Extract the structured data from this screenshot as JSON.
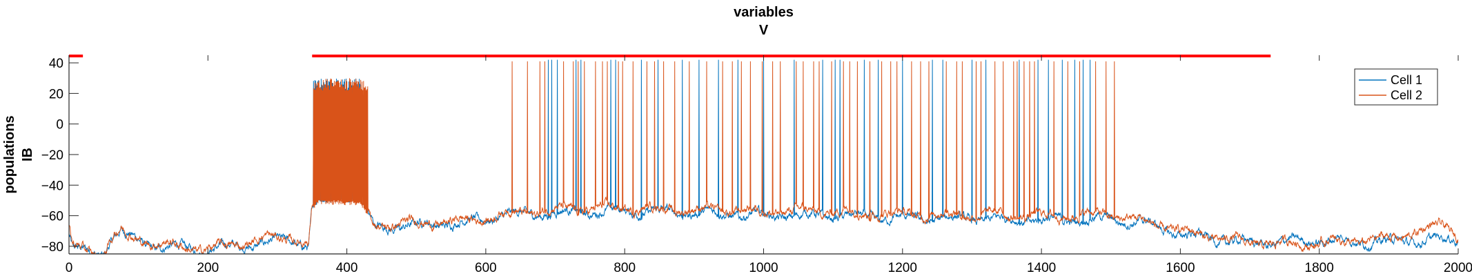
{
  "chart_data": {
    "type": "line",
    "title_lines": [
      "variables",
      "V"
    ],
    "ylabel_lines": [
      "populations",
      "IB"
    ],
    "xlabel": "",
    "xlim": [
      0,
      2000
    ],
    "ylim": [
      -85,
      45
    ],
    "xticks": [
      0,
      200,
      400,
      600,
      800,
      1000,
      1200,
      1400,
      1600,
      1800,
      2000
    ],
    "yticks": [
      -80,
      -60,
      -40,
      -20,
      0,
      20,
      40
    ],
    "legend_position": "top-right",
    "series": [
      {
        "name": "Cell 1",
        "color": "#0072BD",
        "baseline_points": [
          [
            0,
            -72
          ],
          [
            5,
            -82
          ],
          [
            50,
            -85
          ],
          [
            60,
            -76
          ],
          [
            75,
            -70
          ],
          [
            80,
            -72
          ],
          [
            120,
            -80
          ],
          [
            200,
            -82
          ],
          [
            280,
            -78
          ],
          [
            320,
            -76
          ],
          [
            345,
            -80
          ],
          [
            350,
            -55
          ],
          [
            360,
            -50
          ],
          [
            420,
            -50
          ],
          [
            440,
            -68
          ],
          [
            500,
            -66
          ],
          [
            580,
            -64
          ],
          [
            620,
            -60
          ],
          [
            700,
            -58
          ],
          [
            800,
            -57
          ],
          [
            900,
            -58
          ],
          [
            1000,
            -60
          ],
          [
            1100,
            -60
          ],
          [
            1200,
            -62
          ],
          [
            1300,
            -62
          ],
          [
            1400,
            -63
          ],
          [
            1500,
            -62
          ],
          [
            1550,
            -65
          ],
          [
            1600,
            -72
          ],
          [
            1700,
            -78
          ],
          [
            1800,
            -76
          ],
          [
            1900,
            -77
          ],
          [
            2000,
            -75
          ]
        ],
        "burst_range": [
          350,
          420
        ],
        "burst_peak": 30,
        "spike_times": [
          690,
          695,
          703,
          730,
          737,
          780,
          787,
          824,
          848,
          883,
          907,
          935,
          963,
          1000,
          1044,
          1085,
          1103,
          1110,
          1145,
          1165,
          1200,
          1243,
          1258,
          1300,
          1320,
          1368,
          1395,
          1410,
          1430,
          1448,
          1460,
          1470
        ],
        "spike_peak": 42
      },
      {
        "name": "Cell 2",
        "color": "#D95319",
        "baseline_points": [
          [
            0,
            -68
          ],
          [
            5,
            -80
          ],
          [
            50,
            -85
          ],
          [
            60,
            -76
          ],
          [
            75,
            -69
          ],
          [
            80,
            -72
          ],
          [
            120,
            -78
          ],
          [
            200,
            -82
          ],
          [
            280,
            -75
          ],
          [
            320,
            -74
          ],
          [
            345,
            -78
          ],
          [
            350,
            -55
          ],
          [
            360,
            -51
          ],
          [
            420,
            -52
          ],
          [
            440,
            -66
          ],
          [
            500,
            -65
          ],
          [
            580,
            -63
          ],
          [
            620,
            -59
          ],
          [
            700,
            -56
          ],
          [
            800,
            -55
          ],
          [
            900,
            -56
          ],
          [
            1000,
            -57
          ],
          [
            1100,
            -57
          ],
          [
            1200,
            -59
          ],
          [
            1300,
            -59
          ],
          [
            1400,
            -60
          ],
          [
            1500,
            -59
          ],
          [
            1550,
            -64
          ],
          [
            1600,
            -70
          ],
          [
            1700,
            -78
          ],
          [
            1800,
            -78
          ],
          [
            1900,
            -75
          ],
          [
            1980,
            -66
          ],
          [
            2000,
            -72
          ]
        ],
        "burst_range": [
          350,
          430
        ],
        "burst_peak": 30,
        "spike_times": [
          638,
          660,
          678,
          685,
          712,
          726,
          733,
          742,
          758,
          768,
          775,
          791,
          797,
          812,
          832,
          843,
          856,
          872,
          893,
          918,
          941,
          955,
          968,
          981,
          998,
          1013,
          1024,
          1047,
          1057,
          1072,
          1080,
          1098,
          1115,
          1124,
          1135,
          1153,
          1170,
          1183,
          1192,
          1213,
          1226,
          1238,
          1263,
          1278,
          1286,
          1306,
          1313,
          1333,
          1345,
          1360,
          1365,
          1375,
          1383,
          1390,
          1418,
          1438,
          1455,
          1478,
          1493,
          1505
        ],
        "spike_peak": 41
      }
    ],
    "annotations": [
      {
        "type": "horizontal-bar",
        "color": "#FF0000",
        "x_start": 0,
        "x_end": 20,
        "y": 44.5
      },
      {
        "type": "horizontal-bar",
        "color": "#FF0000",
        "x_start": 350,
        "x_end": 1730,
        "y": 44.5
      }
    ]
  }
}
